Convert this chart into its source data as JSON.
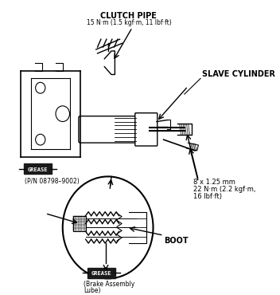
{
  "bg_color": "#ffffff",
  "fig_width": 3.52,
  "fig_height": 3.7,
  "dpi": 100,
  "labels": {
    "clutch_pipe_line1": "CLUTCH PIPE",
    "clutch_pipe_line2": "15 N·m (1.5 kgf·m, 11 lbf·ft)",
    "slave_cylinder": "SLAVE CYLINDER",
    "grease1_tag": "GREASE",
    "pn_label": "(P/N 08798–9002)",
    "bolt_spec_line1": "8 x 1.25 mm",
    "bolt_spec_line2": "22 N·m (2.2 kgf·m,",
    "bolt_spec_line3": "16 lbf·ft)",
    "boot_label": "BOOT",
    "grease2_tag": "GREASE",
    "brake_lube_line1": "(Brake Assembly",
    "brake_lube_line2": "Lube)"
  },
  "text_color": "#000000",
  "line_color": "#000000",
  "grease_box_color": "#1a1a1a",
  "grease_text_color": "#ffffff"
}
